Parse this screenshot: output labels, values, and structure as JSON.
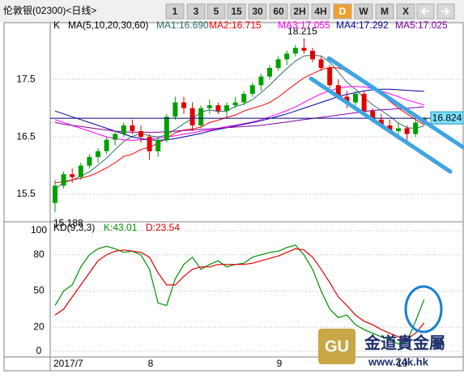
{
  "header": {
    "title": "伦敦银(02300)<日线>",
    "buttons": [
      {
        "label": "1"
      },
      {
        "label": "3"
      },
      {
        "label": "5"
      },
      {
        "label": "15"
      },
      {
        "label": "30"
      },
      {
        "label": "60"
      },
      {
        "label": "2H"
      },
      {
        "label": "4H"
      },
      {
        "label": "D",
        "active": true
      },
      {
        "label": "W"
      },
      {
        "label": "M"
      },
      {
        "label": "X"
      }
    ]
  },
  "watermark": {
    "logo": "GU",
    "name": "金道貴金屬",
    "url": "www.24k.hk"
  },
  "chart_data": [
    {
      "type": "candlestick",
      "label": "K",
      "indicator": "MA(5,10,20,30,60)",
      "categories": [
        "2017/7",
        null,
        null,
        null,
        null,
        null,
        null,
        null,
        null,
        null,
        null,
        "8",
        null,
        null,
        null,
        null,
        null,
        null,
        null,
        null,
        null,
        null,
        null,
        null,
        null,
        null,
        "9",
        null,
        null,
        null,
        null,
        null,
        null,
        null,
        null,
        null,
        null,
        null,
        null,
        null,
        "10",
        null,
        null,
        null
      ],
      "open": [
        15.35,
        15.65,
        15.85,
        15.8,
        16.0,
        16.15,
        16.25,
        16.45,
        16.55,
        16.7,
        16.6,
        16.5,
        16.25,
        16.45,
        16.85,
        17.1,
        17.0,
        16.7,
        17.0,
        17.05,
        16.95,
        17.05,
        17.1,
        17.25,
        17.4,
        17.55,
        17.7,
        17.85,
        17.95,
        18.05,
        18.0,
        17.85,
        17.7,
        17.4,
        17.2,
        17.1,
        17.25,
        16.95,
        16.8,
        16.7,
        16.6,
        16.65,
        16.55,
        16.75
      ],
      "high": [
        15.75,
        15.9,
        15.95,
        16.05,
        16.2,
        16.3,
        16.5,
        16.6,
        16.75,
        16.8,
        16.7,
        16.55,
        16.5,
        16.9,
        17.2,
        17.2,
        17.1,
        17.05,
        17.15,
        17.1,
        17.1,
        17.2,
        17.3,
        17.45,
        17.6,
        17.75,
        17.9,
        18.0,
        18.1,
        18.215,
        18.05,
        17.9,
        17.75,
        17.5,
        17.3,
        17.3,
        17.3,
        17.0,
        16.9,
        16.8,
        16.75,
        16.7,
        16.8,
        16.85
      ],
      "low": [
        15.188,
        15.6,
        15.7,
        15.75,
        15.95,
        16.05,
        16.2,
        16.35,
        16.5,
        16.55,
        16.4,
        16.1,
        16.15,
        16.4,
        16.8,
        16.9,
        16.6,
        16.65,
        16.9,
        16.9,
        16.85,
        17.0,
        17.05,
        17.2,
        17.3,
        17.5,
        17.65,
        17.75,
        17.9,
        17.95,
        17.8,
        17.65,
        17.35,
        17.15,
        17.0,
        17.05,
        16.9,
        16.75,
        16.65,
        16.55,
        16.45,
        16.4,
        16.5,
        16.7
      ],
      "close": [
        15.65,
        15.85,
        15.8,
        16.0,
        16.15,
        16.25,
        16.45,
        16.55,
        16.7,
        16.6,
        16.5,
        16.25,
        16.45,
        16.85,
        17.1,
        17.0,
        16.7,
        17.0,
        17.05,
        16.95,
        17.05,
        17.1,
        17.25,
        17.4,
        17.55,
        17.7,
        17.85,
        17.95,
        18.05,
        18.0,
        17.85,
        17.7,
        17.4,
        17.2,
        17.1,
        17.25,
        16.95,
        16.8,
        16.7,
        16.6,
        16.65,
        16.55,
        16.75,
        16.824
      ],
      "up_color": "#00a000",
      "down_color": "#e00000",
      "last_price_color": "#000080",
      "series": [
        {
          "name": "MA1:16.690",
          "color": "#2f6f6f",
          "values": [
            15.6,
            15.7,
            15.75,
            15.82,
            15.89,
            16.01,
            16.13,
            16.28,
            16.42,
            16.51,
            16.56,
            16.52,
            16.5,
            16.53,
            16.63,
            16.73,
            16.82,
            16.93,
            16.97,
            16.94,
            16.95,
            17.03,
            17.07,
            17.15,
            17.27,
            17.4,
            17.55,
            17.69,
            17.82,
            17.91,
            17.92,
            17.91,
            17.8,
            17.63,
            17.45,
            17.33,
            17.18,
            17.06,
            16.96,
            16.86,
            16.74,
            16.66,
            16.65,
            16.69
          ]
        },
        {
          "name": "MA2:16.715",
          "color": "#ff0000",
          "values": [
            15.7,
            15.72,
            15.75,
            15.78,
            15.82,
            15.88,
            15.96,
            16.05,
            16.16,
            16.2,
            16.28,
            16.32,
            16.39,
            16.48,
            16.57,
            16.62,
            16.64,
            16.67,
            16.75,
            16.79,
            16.84,
            16.88,
            16.95,
            17.0,
            17.04,
            17.1,
            17.19,
            17.31,
            17.42,
            17.53,
            17.6,
            17.67,
            17.71,
            17.7,
            17.65,
            17.58,
            17.48,
            17.37,
            17.25,
            17.12,
            17.0,
            16.9,
            16.8,
            16.715
          ]
        },
        {
          "name": "MA3:17.055",
          "color": "#ff00ff",
          "values": [
            16.8,
            16.75,
            16.7,
            16.65,
            16.6,
            16.55,
            16.5,
            16.47,
            16.45,
            16.44,
            16.45,
            16.46,
            16.48,
            16.5,
            16.52,
            16.55,
            16.57,
            16.6,
            16.62,
            16.65,
            16.68,
            16.7,
            16.73,
            16.76,
            16.8,
            16.85,
            16.9,
            16.96,
            17.02,
            17.1,
            17.18,
            17.25,
            17.3,
            17.35,
            17.37,
            17.38,
            17.37,
            17.34,
            17.3,
            17.25,
            17.2,
            17.14,
            17.1,
            17.055
          ]
        },
        {
          "name": "MA4:17.292",
          "color": "#0000a0",
          "values": [
            16.95,
            16.9,
            16.85,
            16.8,
            16.75,
            16.7,
            16.65,
            16.6,
            16.55,
            16.5,
            16.47,
            16.45,
            16.44,
            16.45,
            16.47,
            16.5,
            16.53,
            16.56,
            16.6,
            16.63,
            16.66,
            16.69,
            16.72,
            16.75,
            16.78,
            16.82,
            16.86,
            16.9,
            16.95,
            17.0,
            17.05,
            17.1,
            17.15,
            17.2,
            17.24,
            17.27,
            17.3,
            17.32,
            17.33,
            17.33,
            17.32,
            17.31,
            17.3,
            17.292
          ]
        },
        {
          "name": "MA5:17.025",
          "color": "#8000a0",
          "values": [
            16.75,
            16.72,
            16.7,
            16.68,
            16.66,
            16.64,
            16.62,
            16.6,
            16.59,
            16.58,
            16.58,
            16.58,
            16.58,
            16.59,
            16.6,
            16.61,
            16.62,
            16.63,
            16.64,
            16.65,
            16.66,
            16.67,
            16.68,
            16.69,
            16.7,
            16.72,
            16.74,
            16.76,
            16.78,
            16.8,
            16.82,
            16.84,
            16.86,
            16.88,
            16.9,
            16.92,
            16.94,
            16.96,
            16.97,
            16.98,
            16.99,
            17.0,
            17.01,
            17.025
          ]
        }
      ],
      "ylim": [
        15.05,
        18.39
      ],
      "yticks": [
        15.5,
        16.5,
        17.5
      ],
      "grid": true
    },
    {
      "type": "line",
      "label": "KD(9,3,3)",
      "series": [
        {
          "name": "K:43.01",
          "color": "#009000",
          "values": [
            38,
            50,
            55,
            70,
            80,
            85,
            87,
            85,
            82,
            83,
            80,
            68,
            40,
            38,
            60,
            72,
            78,
            68,
            72,
            75,
            70,
            72,
            73,
            78,
            80,
            82,
            83,
            86,
            88,
            80,
            68,
            50,
            35,
            28,
            30,
            22,
            18,
            15,
            12,
            10,
            6,
            8,
            25,
            43.01
          ]
        },
        {
          "name": "D:23.54",
          "color": "#e00000",
          "values": [
            30,
            35,
            45,
            55,
            65,
            75,
            80,
            83,
            84,
            83,
            82,
            78,
            65,
            55,
            55,
            62,
            68,
            70,
            70,
            72,
            72,
            72,
            72,
            73,
            75,
            77,
            79,
            82,
            85,
            84,
            78,
            68,
            57,
            45,
            38,
            30,
            25,
            22,
            18,
            15,
            12,
            10,
            15,
            23.54
          ]
        }
      ],
      "ylim": [
        -4,
        106
      ],
      "yticks": [
        0,
        20,
        50,
        80,
        100
      ],
      "grid": true
    }
  ]
}
